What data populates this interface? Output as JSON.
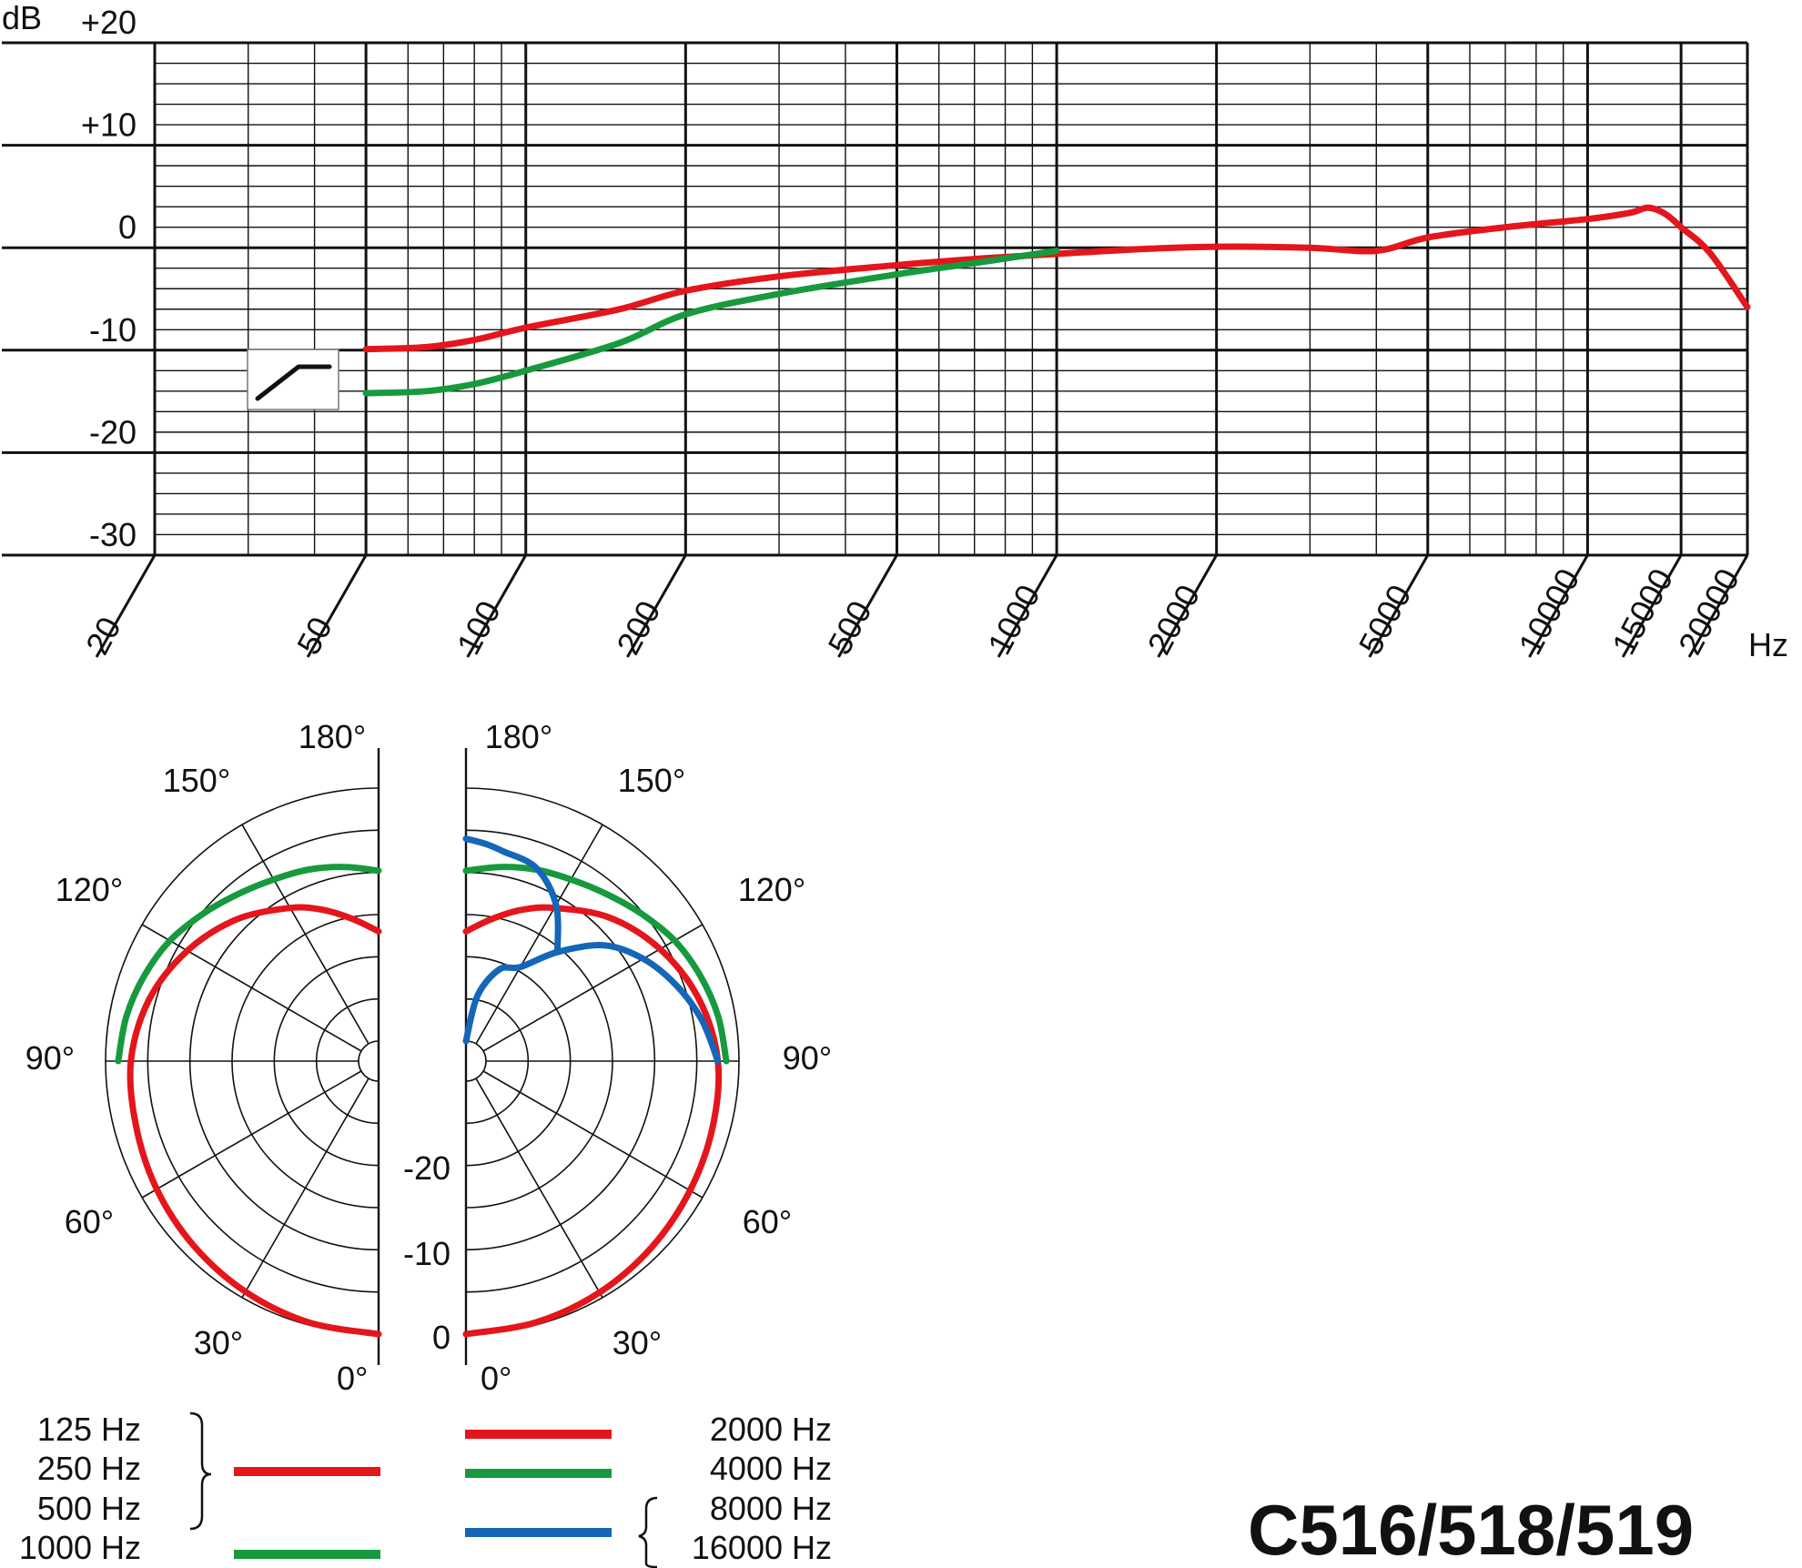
{
  "model_label": "C516/518/519",
  "colors": {
    "red": "#e4161b",
    "green": "#179a3e",
    "blue": "#1466b8",
    "grid": "#111111",
    "background": "#ffffff"
  },
  "chart_data": [
    {
      "type": "line",
      "title": "",
      "xlabel": "Hz",
      "ylabel": "dB",
      "x_scale": "log",
      "xlim": [
        20,
        20000
      ],
      "ylim": [
        -30,
        20
      ],
      "grid": true,
      "x_ticks": [
        "20",
        "50",
        "100",
        "200",
        "500",
        "1000",
        "2000",
        "5000",
        "10000",
        "15000",
        "20000"
      ],
      "y_ticks": [
        "+20",
        "+10",
        "0",
        "-10",
        "-20",
        "-30"
      ],
      "y_tick_values": [
        20,
        10,
        0,
        -10,
        -20,
        -30
      ],
      "bass_cut_icon": "low-cut-filter-icon",
      "series": [
        {
          "color": "red",
          "x": [
            50,
            65,
            80,
            100,
            150,
            200,
            300,
            500,
            700,
            1000,
            1500,
            2000,
            3000,
            4000,
            5000,
            7000,
            10000,
            12000,
            13000,
            14000,
            15000,
            17000,
            20000
          ],
          "y": [
            -9.9,
            -9.7,
            -9.0,
            -7.8,
            -6.0,
            -4.2,
            -2.8,
            -1.7,
            -1.1,
            -0.6,
            -0.1,
            0.1,
            0,
            -0.3,
            1.0,
            2.0,
            2.8,
            3.4,
            3.9,
            3.3,
            2.0,
            -0.5,
            -5.8
          ]
        },
        {
          "color": "green",
          "x": [
            50,
            65,
            80,
            100,
            150,
            200,
            300,
            500,
            700,
            1000
          ],
          "y": [
            -14.2,
            -14.0,
            -13.3,
            -12.0,
            -9.3,
            -6.5,
            -4.5,
            -2.6,
            -1.5,
            -0.3
          ]
        }
      ]
    },
    {
      "type": "polar",
      "title": "",
      "angle_labels": [
        "0°",
        "30°",
        "60°",
        "90°",
        "120°",
        "150°",
        "180°"
      ],
      "angles": [
        0,
        30,
        60,
        90,
        120,
        150,
        180
      ],
      "radial_labels": [
        "0",
        "-10",
        "-20"
      ],
      "rlim": [
        -30,
        0
      ],
      "legend_left": [
        {
          "labels": [
            "125 Hz",
            "250 Hz",
            "500 Hz"
          ],
          "color": "red"
        },
        {
          "labels": [
            "1000 Hz"
          ],
          "color": "green"
        }
      ],
      "legend_right": [
        {
          "labels": [
            "2000 Hz"
          ],
          "color": "red"
        },
        {
          "labels": [
            "4000 Hz"
          ],
          "color": "green"
        },
        {
          "labels": [
            "8000 Hz",
            "16000 Hz"
          ],
          "color": "blue"
        }
      ],
      "left_half": {
        "series": [
          {
            "color": "red",
            "angles": [
              0,
              15,
              30,
              45,
              60,
              75,
              90,
              105,
              120,
              135,
              150,
              160,
              170,
              180
            ],
            "db": [
              0,
              -0.3,
              -0.8,
              -1.4,
              -2.0,
              -2.6,
              -3.0,
              -4.2,
              -6.2,
              -8.6,
              -11.4,
              -13.3,
              -15.3,
              -17.0
            ]
          },
          {
            "color": "green",
            "angles": [
              90,
              100,
              110,
              120,
              130,
              140,
              150,
              160,
              170,
              180
            ],
            "db": [
              -1.5,
              -2.0,
              -2.8,
              -3.8,
              -5.2,
              -6.5,
              -7.5,
              -8.2,
              -9.0,
              -9.8
            ]
          }
        ]
      },
      "right_half": {
        "series": [
          {
            "color": "red",
            "angles": [
              0,
              15,
              30,
              45,
              60,
              75,
              90,
              105,
              120,
              135,
              150,
              160,
              170,
              180
            ],
            "db": [
              0,
              -0.3,
              -0.7,
              -1.2,
              -1.7,
              -2.1,
              -2.5,
              -3.8,
              -5.8,
              -8.3,
              -11.4,
              -13.3,
              -15.3,
              -17.0
            ]
          },
          {
            "color": "green",
            "angles": [
              90,
              100,
              110,
              120,
              130,
              140,
              150,
              160,
              170,
              180
            ],
            "db": [
              -1.5,
              -2.0,
              -2.8,
              -3.8,
              -5.2,
              -6.5,
              -7.5,
              -8.2,
              -9.0,
              -9.8
            ]
          },
          {
            "color": "blue",
            "angles": [
              90,
              100,
              110,
              120,
              130,
              140,
              150,
              160,
              170,
              180
            ],
            "db": [
              -2.5,
              -4.0,
              -5.9,
              -8.1,
              -11.0,
              -15.5,
              -19.5,
              -20.8,
              -24.5,
              -30.0
            ]
          },
          {
            "color": "blue",
            "angles": [
              140,
              150,
              160,
              170,
              175,
              180
            ],
            "db": [
              -15.5,
              -11.0,
              -8.0,
              -7.1,
              -6.5,
              -6.0
            ]
          }
        ]
      }
    }
  ]
}
